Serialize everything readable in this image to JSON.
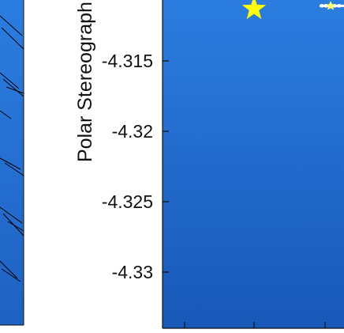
{
  "colors": {
    "plot_background_top": "#2b7de0",
    "plot_background_bottom": "#1858b8",
    "marker_star": "#ffff00",
    "track_line": "#ffffff",
    "track_markers": "#ffff66",
    "vectors": "#000000",
    "axis": "#111111"
  },
  "chart_data": [
    {
      "type": "scatter",
      "panel": "left",
      "note_visible": "partial panel with black vector strokes on blue background",
      "series": [
        {
          "values": []
        }
      ]
    },
    {
      "type": "scatter",
      "panel": "right",
      "ylabel": "Polar Stereograph",
      "yticks": [
        -4.315,
        -4.32,
        -4.325,
        -4.33
      ],
      "ytick_labels": [
        "-4.315",
        "-4.32",
        "-4.325",
        "-4.33"
      ],
      "ylim": [
        -4.3345,
        -4.3105
      ],
      "grid": false,
      "series": [
        {
          "marker": "star-icon",
          "points": [
            {
              "y": -4.3113
            }
          ]
        },
        {
          "marker": "track-line",
          "points": [
            {
              "y": -4.3112
            }
          ]
        }
      ]
    }
  ]
}
